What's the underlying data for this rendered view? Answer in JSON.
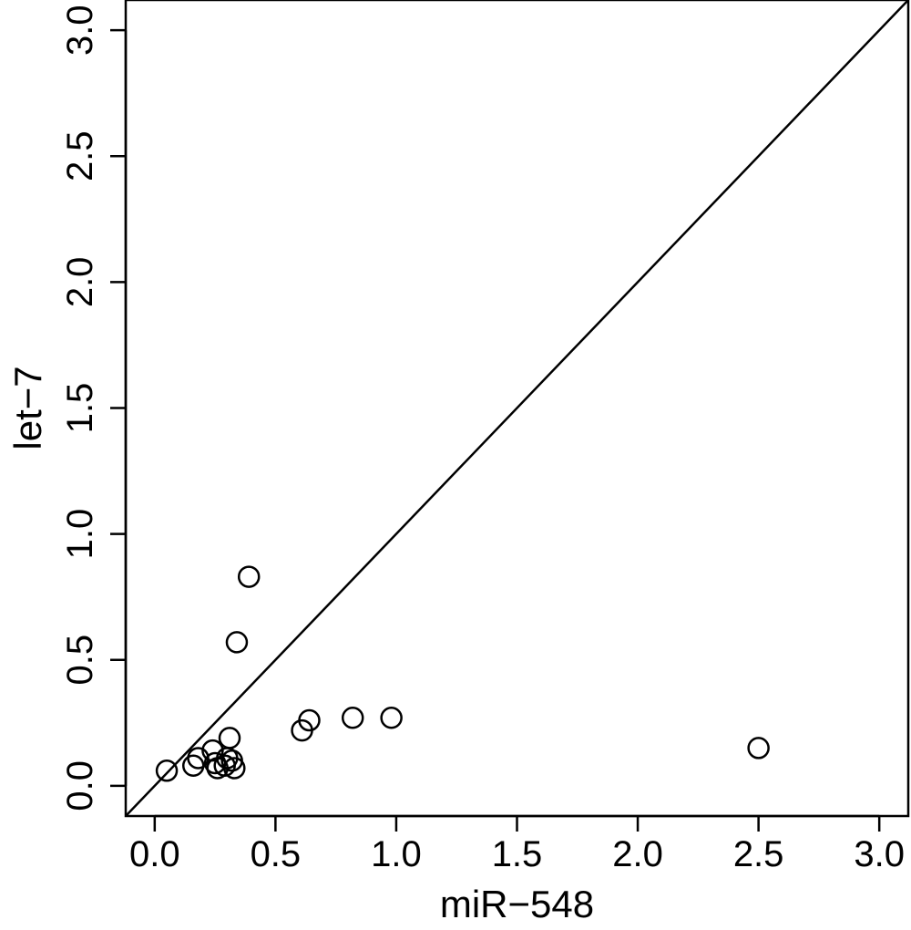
{
  "chart_data": {
    "type": "scatter",
    "title": "",
    "xlabel": "miR−548",
    "ylabel": "let−7",
    "xlim": [
      -0.12,
      3.12
    ],
    "ylim": [
      -0.12,
      3.12
    ],
    "xticks": [
      0.0,
      0.5,
      1.0,
      1.5,
      2.0,
      2.5,
      3.0
    ],
    "yticks": [
      0.0,
      0.5,
      1.0,
      1.5,
      2.0,
      2.5,
      3.0
    ],
    "xtick_labels": [
      "0.0",
      "0.5",
      "1.0",
      "1.5",
      "2.0",
      "2.5",
      "3.0"
    ],
    "ytick_labels": [
      "0.0",
      "0.5",
      "1.0",
      "1.5",
      "2.0",
      "2.5",
      "3.0"
    ],
    "grid": false,
    "reference_line": {
      "slope": 1,
      "intercept": 0
    },
    "marker": "open-circle",
    "color": "#000000",
    "points": [
      {
        "x": 0.05,
        "y": 0.06
      },
      {
        "x": 0.16,
        "y": 0.08
      },
      {
        "x": 0.18,
        "y": 0.11
      },
      {
        "x": 0.24,
        "y": 0.14
      },
      {
        "x": 0.25,
        "y": 0.09
      },
      {
        "x": 0.26,
        "y": 0.07
      },
      {
        "x": 0.29,
        "y": 0.08
      },
      {
        "x": 0.3,
        "y": 0.11
      },
      {
        "x": 0.31,
        "y": 0.19
      },
      {
        "x": 0.32,
        "y": 0.1
      },
      {
        "x": 0.33,
        "y": 0.07
      },
      {
        "x": 0.34,
        "y": 0.57
      },
      {
        "x": 0.39,
        "y": 0.83
      },
      {
        "x": 0.61,
        "y": 0.22
      },
      {
        "x": 0.64,
        "y": 0.26
      },
      {
        "x": 0.82,
        "y": 0.27
      },
      {
        "x": 0.98,
        "y": 0.27
      },
      {
        "x": 2.5,
        "y": 0.15
      }
    ]
  }
}
